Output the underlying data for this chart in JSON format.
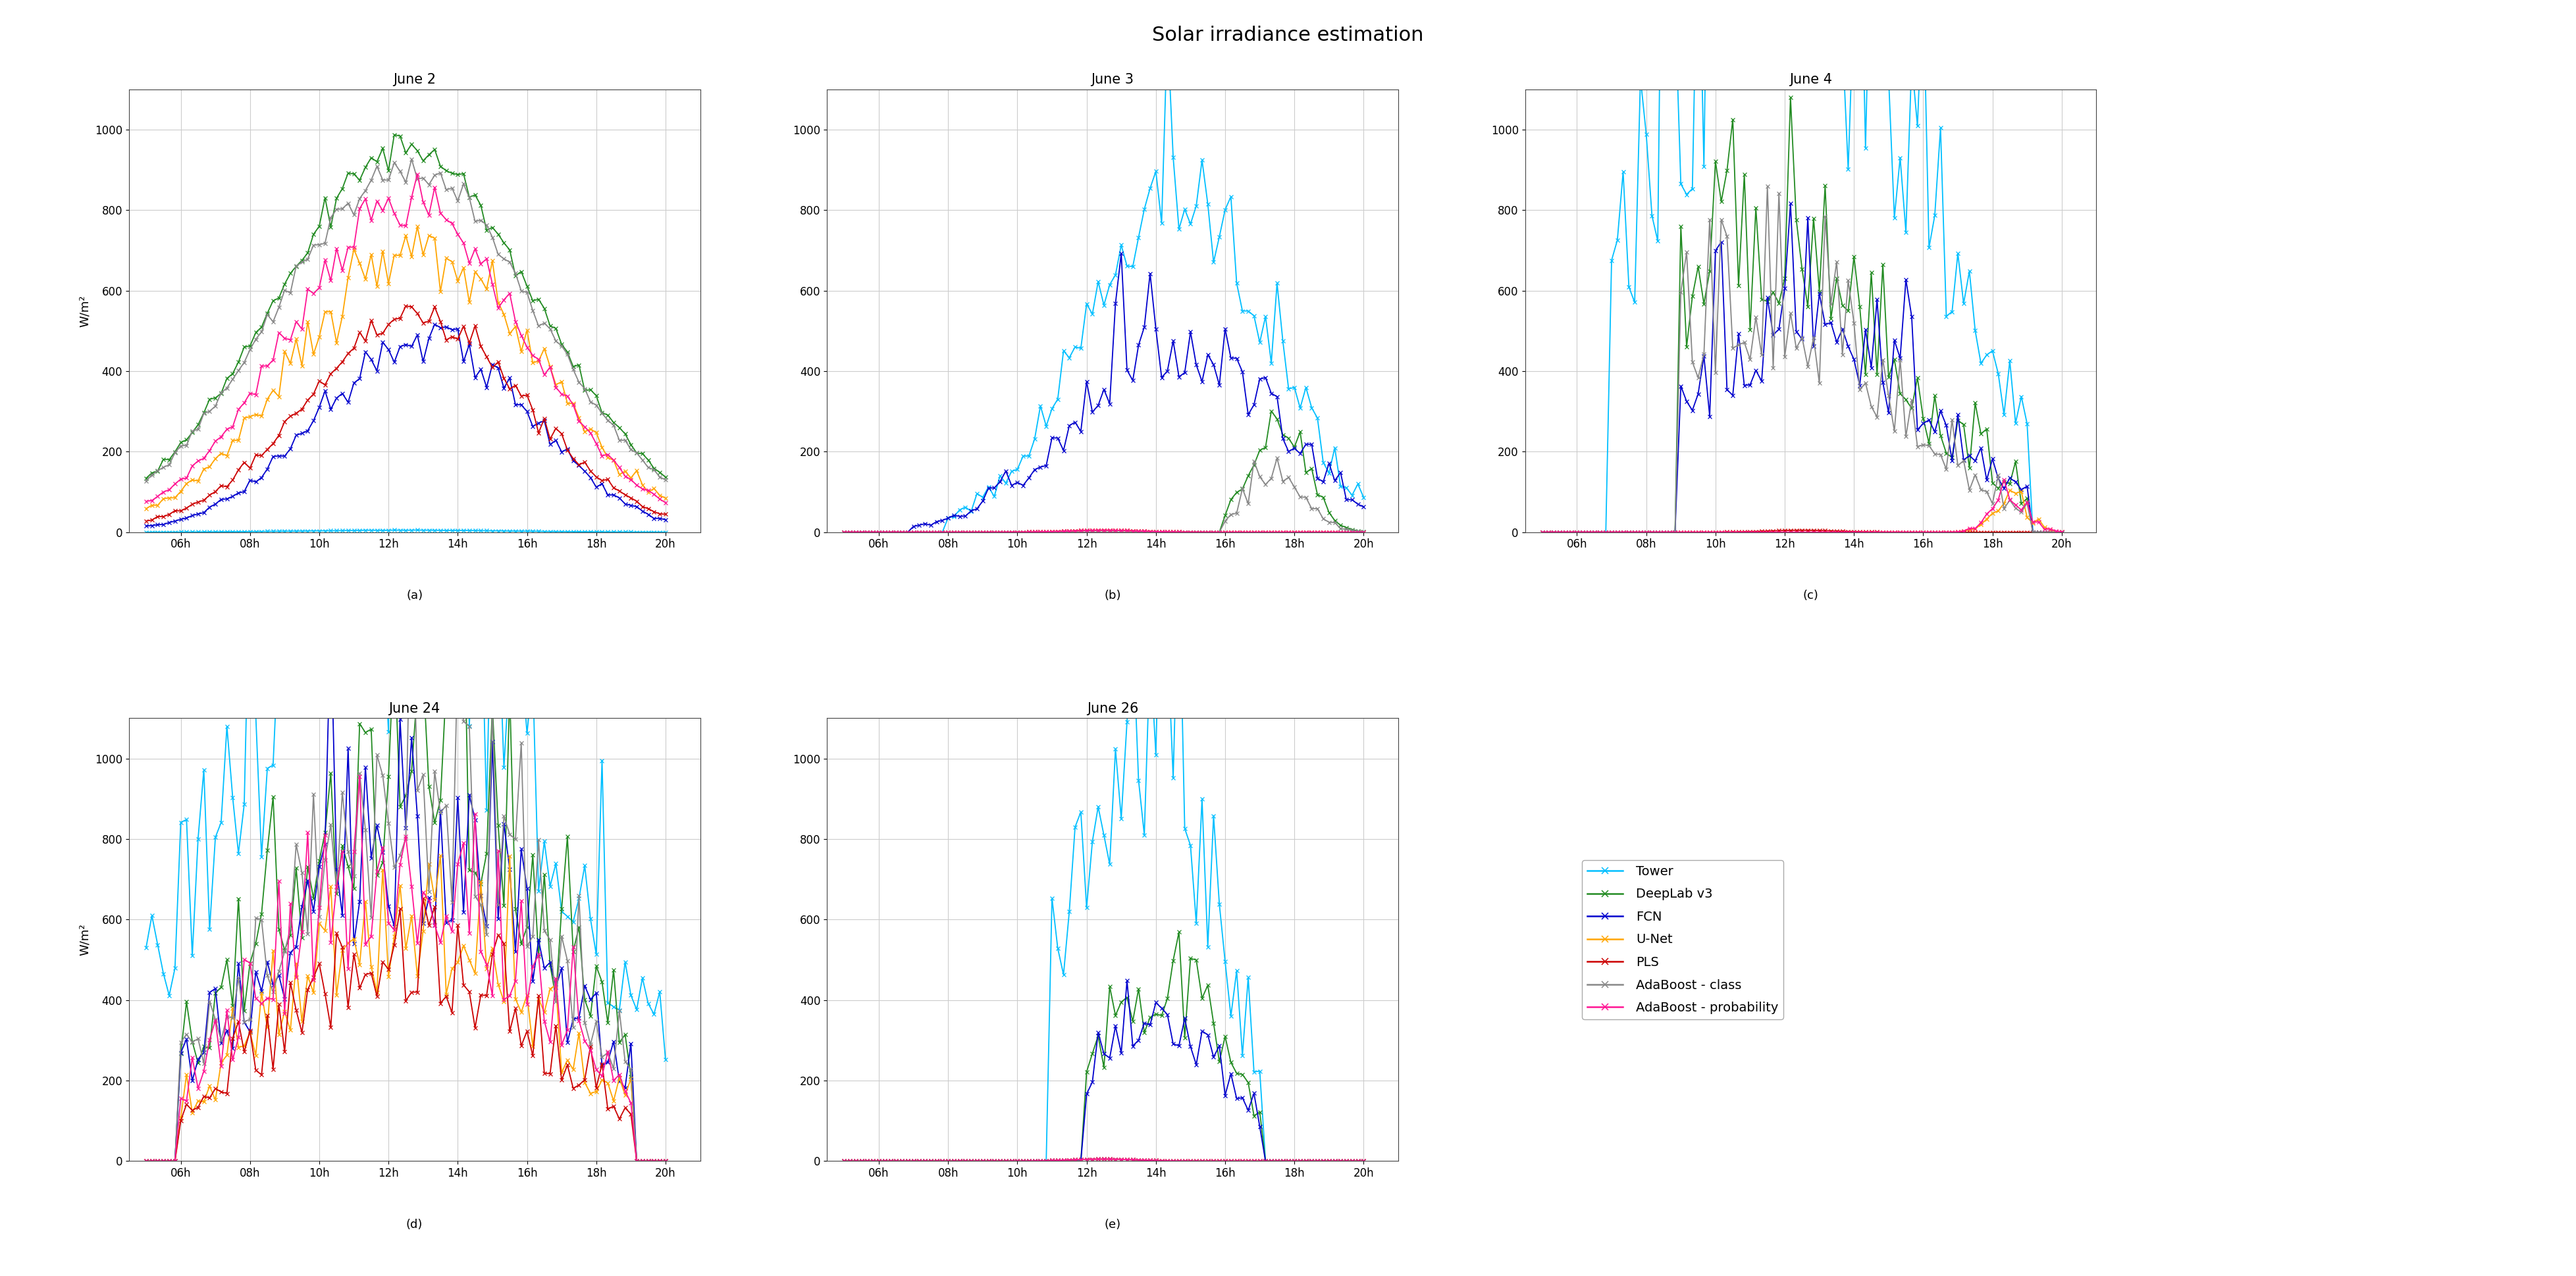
{
  "title": "Solar irradiance estimation",
  "subplot_titles": [
    "June 2",
    "June 3",
    "June 4",
    "June 24",
    "June 26"
  ],
  "subplot_labels": [
    "(a)",
    "(b)",
    "(c)",
    "(d)",
    "(e)"
  ],
  "ylabel": "W/m²",
  "ylim": [
    0,
    1100
  ],
  "yticks": [
    0,
    200,
    400,
    600,
    800,
    1000
  ],
  "xtick_labels": [
    "06h",
    "08h",
    "10h",
    "12h",
    "14h",
    "16h",
    "18h",
    "20h"
  ],
  "series_colors": [
    "#00BFFF",
    "#228B22",
    "#0000CD",
    "#FFA500",
    "#CC0000",
    "#888888",
    "#FF1493"
  ],
  "series_names": [
    "Tower",
    "DeepLab v3",
    "FCN",
    "U-Net",
    "PLS",
    "AdaBoost - class",
    "AdaBoost - probability"
  ],
  "marker": "x",
  "linewidth": 1.3,
  "markersize": 4,
  "background_color": "#ffffff",
  "grid_color": "#cccccc",
  "title_fontsize": 22,
  "subplot_title_fontsize": 15,
  "legend_fontsize": 14,
  "label_fontsize": 13,
  "tick_fontsize": 12
}
